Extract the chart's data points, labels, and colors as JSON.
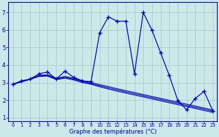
{
  "title": "Graphe des températures (°C)",
  "background_color": "#cce8e8",
  "grid_color": "#aacccc",
  "line_color": "#0000bb",
  "xlim": [
    -0.5,
    23.5
  ],
  "ylim": [
    0.8,
    7.6
  ],
  "yticks": [
    1,
    2,
    3,
    4,
    5,
    6,
    7
  ],
  "xtick_labels": [
    "0",
    "1",
    "2",
    "3",
    "4",
    "5",
    "6",
    "7",
    "8",
    "9",
    "10",
    "11",
    "12",
    "13",
    "14",
    "15",
    "16",
    "17",
    "18",
    "19",
    "20",
    "21",
    "22",
    "23"
  ],
  "main_series": [
    2.9,
    3.1,
    3.2,
    3.5,
    3.6,
    3.2,
    3.65,
    3.3,
    3.1,
    3.05,
    5.85,
    6.75,
    6.5,
    6.5,
    3.5,
    7.0,
    6.0,
    4.7,
    3.4,
    1.95,
    1.45,
    2.1,
    2.5,
    1.4
  ],
  "trend1": [
    2.9,
    3.05,
    3.2,
    3.4,
    3.45,
    3.25,
    3.35,
    3.25,
    3.1,
    3.0,
    2.88,
    2.77,
    2.65,
    2.54,
    2.43,
    2.32,
    2.21,
    2.1,
    1.99,
    1.88,
    1.77,
    1.66,
    1.55,
    1.44
  ],
  "trend2": [
    2.9,
    3.05,
    3.2,
    3.38,
    3.4,
    3.2,
    3.3,
    3.2,
    3.05,
    2.95,
    2.82,
    2.7,
    2.58,
    2.47,
    2.36,
    2.25,
    2.14,
    2.03,
    1.92,
    1.81,
    1.7,
    1.59,
    1.48,
    1.37
  ],
  "trend3": [
    2.9,
    3.04,
    3.18,
    3.35,
    3.37,
    3.17,
    3.25,
    3.15,
    3.0,
    2.9,
    2.76,
    2.63,
    2.51,
    2.4,
    2.29,
    2.18,
    2.07,
    1.96,
    1.85,
    1.74,
    1.63,
    1.52,
    1.41,
    1.3
  ]
}
